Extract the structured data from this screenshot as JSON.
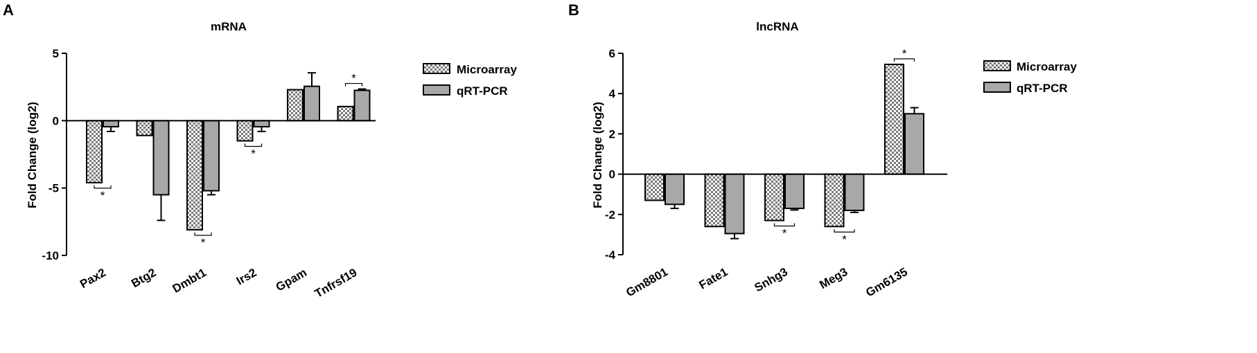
{
  "legend_labels": [
    "Microarray",
    "qRT-PCR"
  ],
  "colors": {
    "microarray": "#9a9a9a",
    "qrt_pcr": "#a8a8a8",
    "axis": "#000000"
  },
  "chart_data": [
    {
      "panel": "A",
      "type": "bar",
      "title": "mRNA",
      "ylabel": "Fold Change (log2)",
      "xlabel": "",
      "ylim": [
        -10,
        5
      ],
      "yticks": [
        5,
        0,
        -5,
        -10
      ],
      "legend_position": "top-right",
      "categories": [
        "Pax2",
        "Btg2",
        "Dmbt1",
        "Irs2",
        "Gpam",
        "Tnfrsf19"
      ],
      "series": [
        {
          "name": "Microarray",
          "values": [
            -4.6,
            -1.1,
            -8.1,
            -1.5,
            2.3,
            1.05
          ],
          "errors": [
            0,
            0,
            0,
            0,
            0,
            0
          ]
        },
        {
          "name": "qRT-PCR",
          "values": [
            -0.45,
            -5.5,
            -5.2,
            -0.45,
            2.55,
            2.25
          ],
          "errors": [
            0.35,
            1.9,
            0.3,
            0.35,
            1.0,
            0.1
          ]
        }
      ],
      "significance": [
        {
          "category": "Pax2",
          "label": "*",
          "side": "below"
        },
        {
          "category": "Dmbt1",
          "label": "*",
          "side": "below"
        },
        {
          "category": "Irs2",
          "label": "*",
          "side": "below"
        },
        {
          "category": "Tnfrsf19",
          "label": "*",
          "side": "above"
        }
      ]
    },
    {
      "panel": "B",
      "type": "bar",
      "title": "lncRNA",
      "ylabel": "Fold Change (log2)",
      "xlabel": "",
      "ylim": [
        -4,
        6
      ],
      "yticks": [
        6,
        4,
        2,
        0,
        -2,
        -4
      ],
      "legend_position": "top-right",
      "categories": [
        "Gm8801",
        "Fate1",
        "Snhg3",
        "Meg3",
        "Gm6135"
      ],
      "series": [
        {
          "name": "Microarray",
          "values": [
            -1.3,
            -2.6,
            -2.3,
            -2.6,
            5.45
          ],
          "errors": [
            0,
            0,
            0,
            0,
            0
          ]
        },
        {
          "name": "qRT-PCR",
          "values": [
            -1.5,
            -2.95,
            -1.7,
            -1.8,
            3.0
          ],
          "errors": [
            0.2,
            0.25,
            0.08,
            0.1,
            0.3
          ]
        }
      ],
      "significance": [
        {
          "category": "Snhg3",
          "label": "*",
          "side": "below"
        },
        {
          "category": "Meg3",
          "label": "*",
          "side": "below"
        },
        {
          "category": "Gm6135",
          "label": "*",
          "side": "above"
        }
      ]
    }
  ]
}
